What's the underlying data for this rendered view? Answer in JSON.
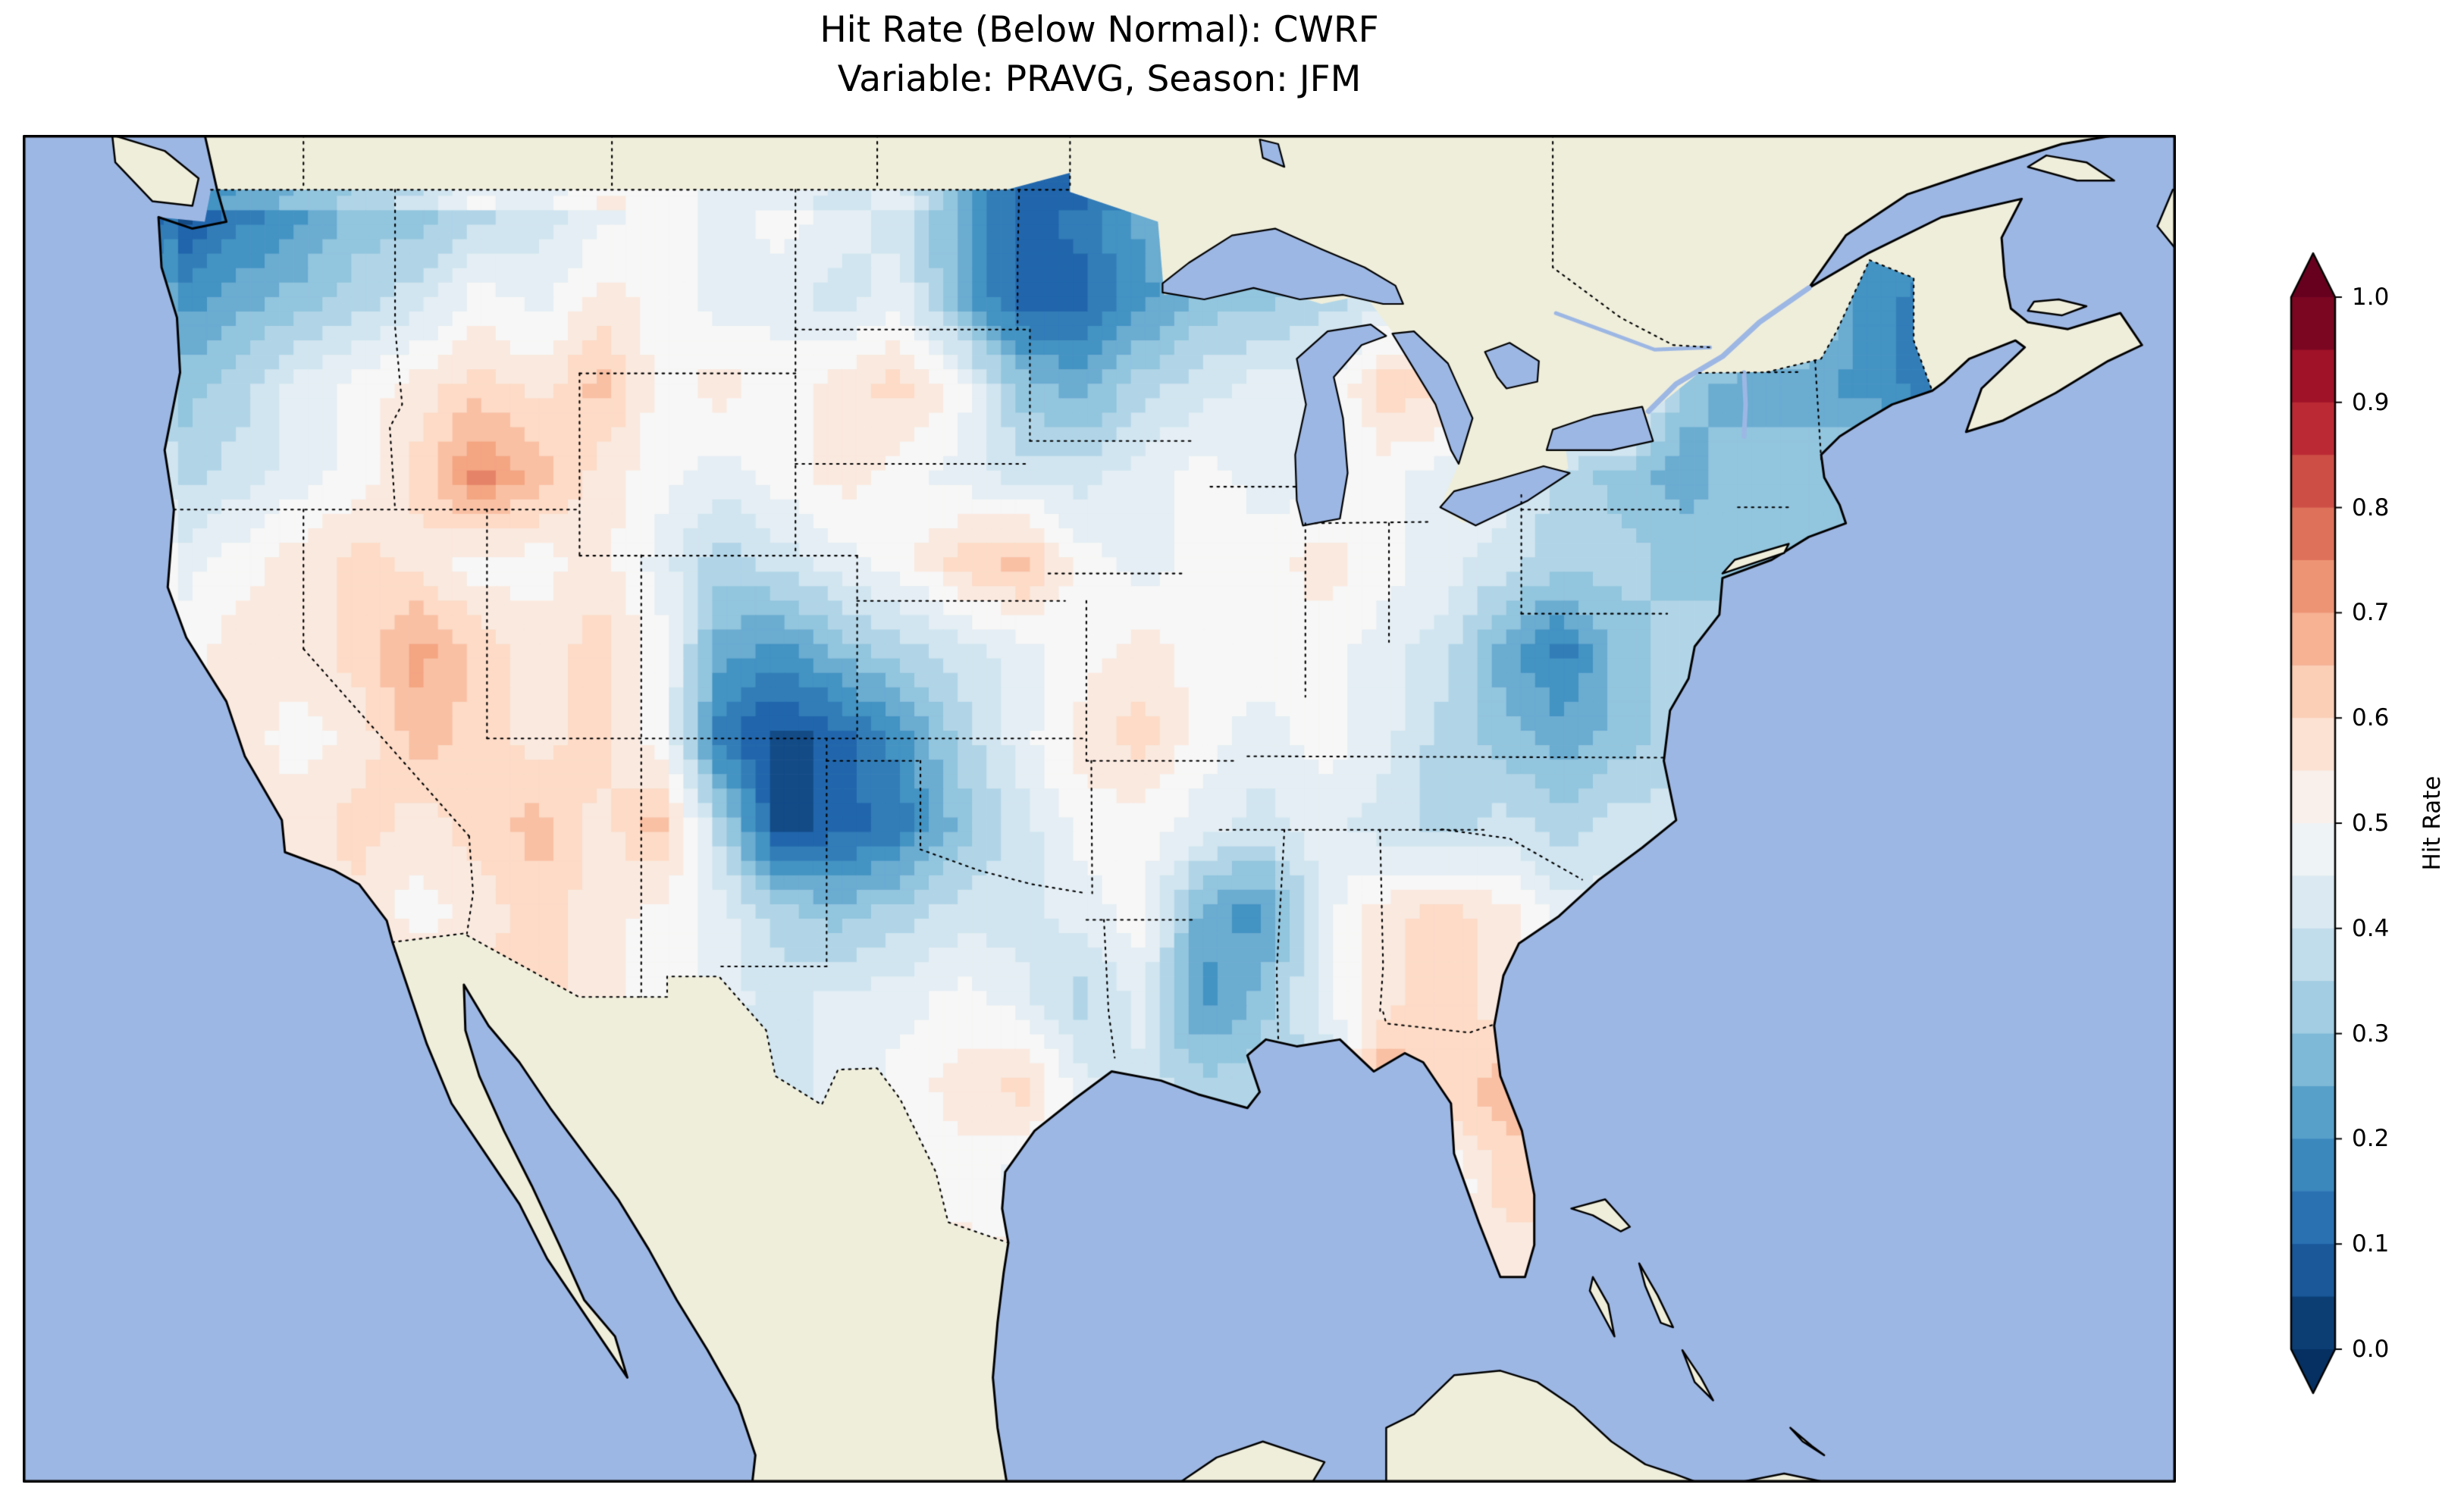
{
  "title": {
    "line1": "Hit Rate (Below Normal): CWRF",
    "line2": "Variable: PRAVG, Season: JFM"
  },
  "colorbar": {
    "label": "Hit Rate",
    "ticks": [
      "1.0",
      "0.9",
      "0.8",
      "0.7",
      "0.6",
      "0.5",
      "0.4",
      "0.3",
      "0.2",
      "0.1",
      "0.0"
    ],
    "extend": "both"
  },
  "colors": {
    "ocean": "#9db7e4",
    "land": "#efeedb",
    "coastline": "#000000",
    "state_borders": "#000000",
    "figure_background": "#ffffff"
  },
  "chart_data": {
    "type": "heatmap",
    "title": "Hit Rate (Below Normal): CWRF",
    "subtitle": "Variable: PRAVG, Season: JFM",
    "metric": "Hit Rate (Below Normal)",
    "model": "CWRF",
    "variable": "PRAVG",
    "season": "JFM",
    "region": "Contiguous United States",
    "colormap": "RdBu_r",
    "colormap_stops": [
      [
        0.0,
        "#053061"
      ],
      [
        0.1,
        "#2166ac"
      ],
      [
        0.2,
        "#4393c3"
      ],
      [
        0.3,
        "#92c5de"
      ],
      [
        0.4,
        "#d1e5f0"
      ],
      [
        0.5,
        "#f7f7f7"
      ],
      [
        0.6,
        "#fddbc7"
      ],
      [
        0.7,
        "#f4a582"
      ],
      [
        0.8,
        "#d6604d"
      ],
      [
        0.9,
        "#b2182b"
      ],
      [
        1.0,
        "#67001f"
      ]
    ],
    "value_range": [
      0.0,
      1.0
    ],
    "colorbar_label": "Hit Rate",
    "colorbar_ticks": [
      1.0,
      0.9,
      0.8,
      0.7,
      0.6,
      0.5,
      0.4,
      0.3,
      0.2,
      0.1,
      0.0
    ],
    "map_extent": {
      "lon_min": -129.1,
      "lon_max": -59.3,
      "lat_min": 20.7,
      "lat_max": 50.2
    },
    "grid": {
      "lon_min": -125.0,
      "lon_max": -66.5,
      "lat_min": 24.5,
      "lat_max": 49.5,
      "ncols": 30,
      "nrows": 13,
      "order": "rows_north_to_south",
      "values": [
        [
          0.05,
          0.15,
          0.2,
          0.3,
          0.3,
          0.35,
          0.4,
          0.45,
          0.5,
          0.45,
          0.5,
          0.45,
          0.4,
          0.25,
          0.1,
          0.15,
          0.25,
          null,
          null,
          null,
          null,
          null,
          null,
          null,
          null,
          null,
          null,
          null,
          null,
          null
        ],
        [
          0.2,
          0.25,
          0.3,
          0.35,
          0.4,
          0.5,
          0.45,
          0.55,
          0.5,
          0.45,
          0.45,
          0.4,
          0.45,
          0.25,
          0.1,
          0.1,
          0.2,
          0.3,
          0.3,
          0.35,
          0.4,
          null,
          null,
          null,
          null,
          null,
          null,
          null,
          0.2,
          0.15
        ],
        [
          0.3,
          0.35,
          0.45,
          0.5,
          0.55,
          0.6,
          0.55,
          0.65,
          0.5,
          0.55,
          0.5,
          0.55,
          0.6,
          0.5,
          0.3,
          0.25,
          0.35,
          0.4,
          0.45,
          null,
          0.6,
          null,
          null,
          null,
          null,
          0.3,
          0.25,
          0.25,
          0.2,
          0.15
        ],
        [
          0.35,
          0.4,
          0.45,
          0.5,
          0.6,
          0.75,
          0.65,
          0.55,
          0.5,
          0.45,
          0.5,
          0.55,
          0.5,
          0.45,
          0.4,
          0.4,
          0.45,
          0.5,
          0.45,
          null,
          0.5,
          0.45,
          null,
          0.35,
          0.3,
          0.25,
          0.3,
          0.3,
          0.35,
          null
        ],
        [
          0.45,
          0.5,
          0.55,
          0.6,
          0.55,
          0.5,
          0.5,
          0.55,
          0.45,
          0.35,
          0.4,
          0.45,
          0.5,
          0.6,
          0.65,
          0.5,
          0.45,
          0.5,
          0.5,
          0.55,
          0.5,
          0.45,
          0.4,
          0.35,
          0.35,
          0.3,
          0.3,
          null,
          null,
          null
        ],
        [
          0.5,
          0.55,
          0.55,
          0.6,
          0.7,
          0.6,
          0.55,
          0.6,
          0.5,
          0.25,
          0.2,
          0.3,
          0.35,
          0.4,
          0.45,
          0.5,
          0.55,
          0.5,
          0.5,
          0.5,
          0.45,
          0.4,
          0.25,
          0.15,
          0.3,
          0.35,
          null,
          null,
          null,
          null
        ],
        [
          0.5,
          0.55,
          0.5,
          0.55,
          0.65,
          0.6,
          0.55,
          0.6,
          0.5,
          0.15,
          0.05,
          0.1,
          0.2,
          0.35,
          0.45,
          0.55,
          0.6,
          0.5,
          0.45,
          0.5,
          0.45,
          0.35,
          0.3,
          0.25,
          0.3,
          0.35,
          null,
          null,
          null,
          null
        ],
        [
          null,
          0.55,
          0.55,
          0.6,
          0.55,
          0.6,
          0.65,
          0.55,
          0.65,
          0.35,
          0.05,
          0.1,
          0.15,
          0.3,
          0.4,
          0.5,
          0.5,
          0.45,
          0.4,
          0.45,
          0.4,
          0.35,
          0.4,
          0.35,
          0.4,
          null,
          null,
          null,
          null,
          null
        ],
        [
          null,
          null,
          null,
          0.55,
          0.5,
          0.55,
          0.6,
          0.55,
          0.5,
          0.45,
          0.35,
          0.3,
          0.35,
          0.4,
          0.4,
          0.45,
          0.5,
          0.25,
          0.2,
          0.45,
          0.55,
          0.6,
          0.55,
          0.45,
          null,
          null,
          null,
          null,
          null,
          null
        ],
        [
          null,
          null,
          null,
          null,
          null,
          0.6,
          0.6,
          0.55,
          0.5,
          0.45,
          0.4,
          0.45,
          0.45,
          0.5,
          0.45,
          0.35,
          0.45,
          0.2,
          0.3,
          0.45,
          0.55,
          0.6,
          0.55,
          null,
          null,
          null,
          null,
          null,
          null,
          null
        ],
        [
          null,
          null,
          null,
          null,
          null,
          null,
          null,
          null,
          null,
          null,
          0.4,
          0.45,
          0.5,
          0.55,
          0.6,
          0.45,
          0.4,
          0.35,
          null,
          null,
          0.7,
          0.6,
          0.65,
          null,
          null,
          null,
          null,
          null,
          null,
          null
        ],
        [
          null,
          null,
          null,
          null,
          null,
          null,
          null,
          null,
          null,
          null,
          null,
          null,
          0.45,
          0.5,
          0.45,
          null,
          null,
          null,
          null,
          null,
          null,
          null,
          0.6,
          null,
          null,
          null,
          null,
          null,
          null,
          null
        ],
        [
          null,
          null,
          null,
          null,
          null,
          null,
          null,
          null,
          null,
          null,
          null,
          null,
          null,
          null,
          null,
          null,
          null,
          null,
          null,
          null,
          null,
          null,
          0.55,
          null,
          null,
          null,
          null,
          null,
          null,
          null
        ]
      ]
    },
    "notable_features": [
      {
        "region": "Pacific Northwest coast (W Washington)",
        "hit_rate": "0.0-0.15"
      },
      {
        "region": "Eastern North Dakota / Minnesota",
        "hit_rate": "0.05-0.2"
      },
      {
        "region": "E Colorado - W Kansas - OK/TX panhandles",
        "hit_rate": "0.0-0.15"
      },
      {
        "region": "Southern Idaho / N Utah red maximum",
        "hit_rate": "0.7-0.8"
      },
      {
        "region": "Virginia / central Appalachians",
        "hit_rate": "0.15-0.3"
      },
      {
        "region": "Mississippi",
        "hit_rate": "0.15-0.3"
      },
      {
        "region": "Northern New England (Maine)",
        "hit_rate": "0.1-0.25"
      },
      {
        "region": "Florida peninsula and panhandle coast",
        "hit_rate": "0.6-0.75"
      },
      {
        "region": "Eastern Nebraska / W Iowa",
        "hit_rate": "0.6-0.65"
      },
      {
        "region": "Great Basin (NV/UT/AZ orange spots)",
        "hit_rate": "0.6-0.7"
      }
    ]
  }
}
